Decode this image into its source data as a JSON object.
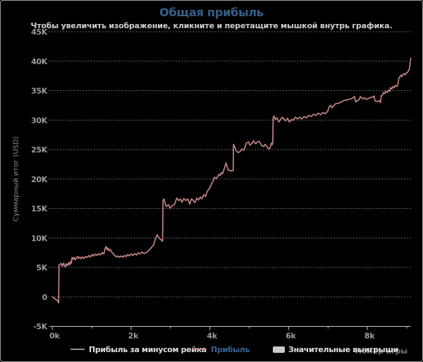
{
  "header": {
    "title": "Общая прибыль",
    "subtitle": "Чтобы увеличить изображение, кликните и перетащите мышкой внутрь графика."
  },
  "colors": {
    "window_border": "#9a9a9a",
    "background": "#000000",
    "title": "#336089",
    "subtitle": "#cfcfcf",
    "gridline": "#c4c4c4",
    "axis_line": "#c8c8c8",
    "axis_tick_text": "#9c9c9c",
    "y_axis_title": "#8c8c8c",
    "x_axis_title": "#6e6e6e",
    "legend_text": "#e0e0e0",
    "legend_profit_text": "#35648e",
    "profit_line": "#c28383",
    "rake_line": "#909090",
    "big_wins_swatch": "#cbcbcb"
  },
  "legend": {
    "items": [
      {
        "label": "Прибыль за минусом рейка",
        "marker": "line",
        "color": "#909090"
      },
      {
        "label": "Прибыль",
        "marker": "line",
        "color": "#c28383"
      },
      {
        "label": "Значительные выигрыши",
        "marker": "box",
        "color": "#cbcbcb"
      }
    ]
  },
  "axes": {
    "x_title": "Номер игры",
    "y_title": "Суммарный итог (USD)"
  },
  "chart_data": {
    "type": "line",
    "title": "Общая прибыль",
    "xlabel": "Номер игры",
    "ylabel": "Суммарный итог (USD)",
    "xlim": [
      0,
      9103
    ],
    "ylim": [
      -5000,
      45000
    ],
    "grid": "horizontal-dotted",
    "legend_position": "bottom",
    "yticks": [
      {
        "value": 45000,
        "label": "45K"
      },
      {
        "value": 40000,
        "label": "40K"
      },
      {
        "value": 35000,
        "label": "35K"
      },
      {
        "value": 30000,
        "label": "30K"
      },
      {
        "value": 25000,
        "label": "25K"
      },
      {
        "value": 20000,
        "label": "20K"
      },
      {
        "value": 15000,
        "label": "15K"
      },
      {
        "value": 10000,
        "label": "10K"
      },
      {
        "value": 5000,
        "label": "5K"
      },
      {
        "value": 0,
        "label": "0"
      },
      {
        "value": -5000,
        "label": "-5K"
      }
    ],
    "xticks_major": [
      {
        "value": 0,
        "label": "0k"
      },
      {
        "value": 2000,
        "label": "2k"
      },
      {
        "value": 4000,
        "label": "4k"
      },
      {
        "value": 6000,
        "label": "6k"
      },
      {
        "value": 8000,
        "label": "8k"
      }
    ],
    "xticks_minor": [
      1000,
      3000,
      5000,
      7000,
      9000
    ],
    "series": [
      {
        "name": "Прибыль",
        "color": "#c28383",
        "points": [
          [
            0,
            50
          ],
          [
            35,
            -150
          ],
          [
            70,
            -350
          ],
          [
            105,
            -500
          ],
          [
            140,
            -750
          ],
          [
            160,
            -1000
          ],
          [
            168,
            5450
          ],
          [
            195,
            5550
          ],
          [
            230,
            5680
          ],
          [
            248,
            5180
          ],
          [
            268,
            5500
          ],
          [
            288,
            5750
          ],
          [
            305,
            5350
          ],
          [
            328,
            5100
          ],
          [
            358,
            5620
          ],
          [
            382,
            5300
          ],
          [
            415,
            5830
          ],
          [
            438,
            5430
          ],
          [
            462,
            6000
          ],
          [
            478,
            5700
          ],
          [
            500,
            6700
          ],
          [
            525,
            6380
          ],
          [
            552,
            6700
          ],
          [
            580,
            6300
          ],
          [
            612,
            6630
          ],
          [
            640,
            6870
          ],
          [
            668,
            6550
          ],
          [
            700,
            6790
          ],
          [
            732,
            6470
          ],
          [
            766,
            6790
          ],
          [
            805,
            6550
          ],
          [
            845,
            6870
          ],
          [
            890,
            6700
          ],
          [
            932,
            7030
          ],
          [
            972,
            6790
          ],
          [
            1010,
            7190
          ],
          [
            1050,
            6950
          ],
          [
            1092,
            7270
          ],
          [
            1135,
            7030
          ],
          [
            1178,
            7350
          ],
          [
            1222,
            7110
          ],
          [
            1265,
            7510
          ],
          [
            1307,
            7270
          ],
          [
            1340,
            8230
          ],
          [
            1362,
            8550
          ],
          [
            1390,
            7990
          ],
          [
            1415,
            8310
          ],
          [
            1442,
            7830
          ],
          [
            1470,
            8070
          ],
          [
            1505,
            7590
          ],
          [
            1545,
            7310
          ],
          [
            1587,
            7030
          ],
          [
            1630,
            6790
          ],
          [
            1666,
            6950
          ],
          [
            1705,
            6710
          ],
          [
            1747,
            6950
          ],
          [
            1790,
            6750
          ],
          [
            1830,
            7030
          ],
          [
            1870,
            6830
          ],
          [
            1910,
            7190
          ],
          [
            1952,
            6950
          ],
          [
            1995,
            7270
          ],
          [
            2042,
            7030
          ],
          [
            2090,
            7350
          ],
          [
            2140,
            7110
          ],
          [
            2178,
            7470
          ],
          [
            2225,
            7300
          ],
          [
            2270,
            7600
          ],
          [
            2330,
            7380
          ],
          [
            2390,
            7520
          ],
          [
            2452,
            7900
          ],
          [
            2510,
            8350
          ],
          [
            2565,
            8750
          ],
          [
            2620,
            9900
          ],
          [
            2660,
            10550
          ],
          [
            2700,
            10100
          ],
          [
            2745,
            9750
          ],
          [
            2798,
            9450
          ],
          [
            2812,
            16400
          ],
          [
            2832,
            16620
          ],
          [
            2890,
            15350
          ],
          [
            2950,
            15650
          ],
          [
            2988,
            15050
          ],
          [
            3040,
            15450
          ],
          [
            3100,
            15650
          ],
          [
            3160,
            16800
          ],
          [
            3210,
            16350
          ],
          [
            3255,
            16600
          ],
          [
            3292,
            16050
          ],
          [
            3340,
            16700
          ],
          [
            3390,
            16350
          ],
          [
            3440,
            16600
          ],
          [
            3490,
            15750
          ],
          [
            3532,
            16650
          ],
          [
            3576,
            16350
          ],
          [
            3620,
            16000
          ],
          [
            3665,
            16750
          ],
          [
            3710,
            16450
          ],
          [
            3756,
            16950
          ],
          [
            3800,
            16650
          ],
          [
            3845,
            17350
          ],
          [
            3890,
            17050
          ],
          [
            3936,
            17950
          ],
          [
            3990,
            18400
          ],
          [
            4050,
            19300
          ],
          [
            4082,
            19650
          ],
          [
            4112,
            20300
          ],
          [
            4170,
            20100
          ],
          [
            4230,
            20800
          ],
          [
            4262,
            20600
          ],
          [
            4292,
            21100
          ],
          [
            4322,
            20900
          ],
          [
            4352,
            21500
          ],
          [
            4412,
            22750
          ],
          [
            4435,
            22100
          ],
          [
            4465,
            21550
          ],
          [
            4525,
            21400
          ],
          [
            4592,
            21450
          ],
          [
            4600,
            25900
          ],
          [
            4628,
            25500
          ],
          [
            4658,
            24900
          ],
          [
            4716,
            24500
          ],
          [
            4776,
            24700
          ],
          [
            4806,
            25100
          ],
          [
            4866,
            24900
          ],
          [
            4926,
            26100
          ],
          [
            4986,
            26300
          ],
          [
            5016,
            25750
          ],
          [
            5076,
            26100
          ],
          [
            5106,
            26500
          ],
          [
            5166,
            26000
          ],
          [
            5208,
            26300
          ],
          [
            5256,
            26400
          ],
          [
            5316,
            25700
          ],
          [
            5366,
            25500
          ],
          [
            5406,
            25900
          ],
          [
            5446,
            25500
          ],
          [
            5496,
            25100
          ],
          [
            5532,
            25350
          ],
          [
            5562,
            26100
          ],
          [
            5590,
            25850
          ],
          [
            5598,
            26100
          ],
          [
            5608,
            30500
          ],
          [
            5632,
            30700
          ],
          [
            5662,
            30100
          ],
          [
            5706,
            30400
          ],
          [
            5752,
            29700
          ],
          [
            5796,
            30100
          ],
          [
            5840,
            30500
          ],
          [
            5890,
            30100
          ],
          [
            5932,
            29900
          ],
          [
            5972,
            30300
          ],
          [
            6022,
            29700
          ],
          [
            6072,
            30100
          ],
          [
            6112,
            30000
          ],
          [
            6172,
            30500
          ],
          [
            6222,
            30200
          ],
          [
            6282,
            30500
          ],
          [
            6332,
            30200
          ],
          [
            6392,
            30600
          ],
          [
            6452,
            30400
          ],
          [
            6512,
            30800
          ],
          [
            6572,
            30600
          ],
          [
            6632,
            31000
          ],
          [
            6692,
            30800
          ],
          [
            6752,
            31200
          ],
          [
            6812,
            30900
          ],
          [
            6872,
            31300
          ],
          [
            6932,
            31100
          ],
          [
            6992,
            31500
          ],
          [
            7032,
            32300
          ],
          [
            7072,
            32500
          ],
          [
            7102,
            32100
          ],
          [
            7192,
            32800
          ],
          [
            7282,
            32900
          ],
          [
            7402,
            33300
          ],
          [
            7522,
            33500
          ],
          [
            7612,
            33700
          ],
          [
            7672,
            34000
          ],
          [
            7702,
            33100
          ],
          [
            7792,
            33500
          ],
          [
            7822,
            34000
          ],
          [
            7882,
            33600
          ],
          [
            7932,
            33800
          ],
          [
            7972,
            33500
          ],
          [
            8062,
            33800
          ],
          [
            8132,
            33900
          ],
          [
            8172,
            34100
          ],
          [
            8192,
            33300
          ],
          [
            8242,
            33150
          ],
          [
            8302,
            33300
          ],
          [
            8332,
            33000
          ],
          [
            8352,
            34100
          ],
          [
            8392,
            34350
          ],
          [
            8408,
            34700
          ],
          [
            8448,
            34500
          ],
          [
            8468,
            34900
          ],
          [
            8508,
            34700
          ],
          [
            8538,
            35100
          ],
          [
            8568,
            34900
          ],
          [
            8588,
            35500
          ],
          [
            8622,
            35300
          ],
          [
            8648,
            35700
          ],
          [
            8682,
            35500
          ],
          [
            8708,
            35900
          ],
          [
            8748,
            35700
          ],
          [
            8778,
            36100
          ],
          [
            8798,
            37100
          ],
          [
            8828,
            37400
          ],
          [
            8852,
            37600
          ],
          [
            8872,
            37400
          ],
          [
            8898,
            37700
          ],
          [
            8928,
            37900
          ],
          [
            8958,
            37700
          ],
          [
            8988,
            38000
          ],
          [
            9018,
            38100
          ],
          [
            9048,
            38400
          ],
          [
            9065,
            38700
          ],
          [
            9078,
            39300
          ],
          [
            9088,
            39900
          ],
          [
            9096,
            40300
          ],
          [
            9103,
            40500
          ]
        ]
      }
    ]
  }
}
